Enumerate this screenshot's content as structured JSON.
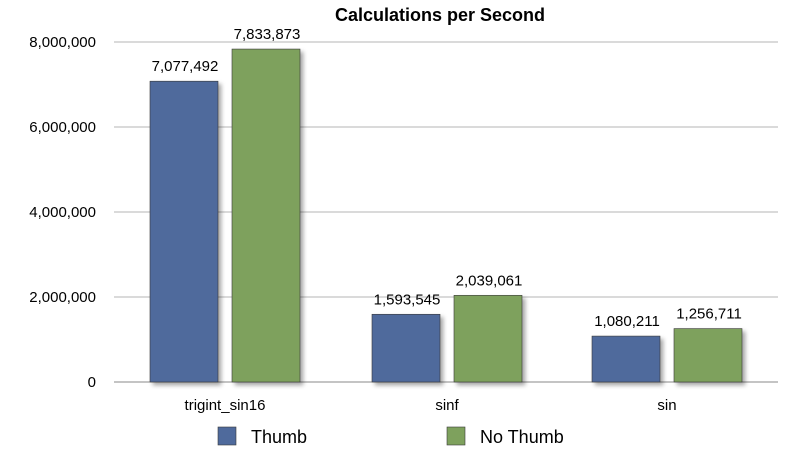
{
  "chart_data": {
    "type": "bar",
    "title": "Calculations per Second",
    "categories": [
      "trigint_sin16",
      "sinf",
      "sin"
    ],
    "series": [
      {
        "name": "Thumb",
        "values": [
          7077492,
          1593545,
          1080211
        ],
        "labels": [
          "7,077,492",
          "1,593,545",
          "1,080,211"
        ],
        "color": "#4F6A9C"
      },
      {
        "name": "No Thumb",
        "values": [
          7833873,
          2039061,
          1256711
        ],
        "labels": [
          "7,833,873",
          "2,039,061",
          "1,256,711"
        ],
        "color": "#7EA15D"
      }
    ],
    "yticks": [
      0,
      2000000,
      4000000,
      6000000,
      8000000
    ],
    "ytick_labels": [
      "0",
      "2,000,000",
      "4,000,000",
      "6,000,000",
      "8,000,000"
    ],
    "ylim": [
      0,
      8000000
    ],
    "grid": true,
    "legend_position": "bottom-center",
    "xlabel": "",
    "ylabel": ""
  }
}
